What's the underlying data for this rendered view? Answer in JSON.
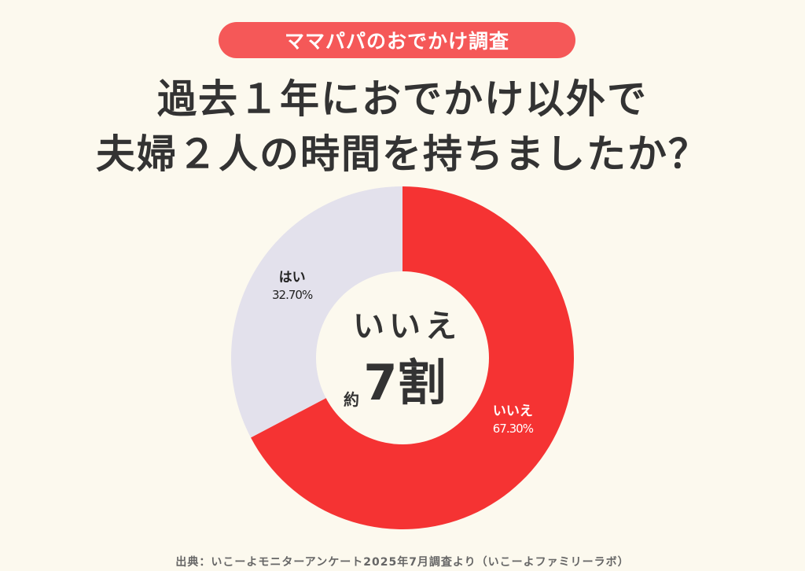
{
  "header": {
    "badge": "ママパパのおでかけ調査",
    "title_line1": "過去１年におでかけ以外で",
    "title_line2": "夫婦２人の時間を持ちましたか？"
  },
  "center": {
    "answer": "いいえ",
    "prefix": "約",
    "value": "7割"
  },
  "footer": {
    "source": "出典：いこーよモニターアンケート2025年7月調査より（いこーよファミリーラボ）"
  },
  "chart_data": {
    "type": "pie",
    "donut": true,
    "categories": [
      "いいえ",
      "はい"
    ],
    "values": [
      67.3,
      32.7
    ],
    "value_labels": [
      "67.30%",
      "32.70%"
    ],
    "colors": [
      "#f53333",
      "#e3e1ec"
    ],
    "label_colors": [
      "#ffffff",
      "#222222"
    ],
    "start": "top",
    "direction": "clockwise"
  }
}
